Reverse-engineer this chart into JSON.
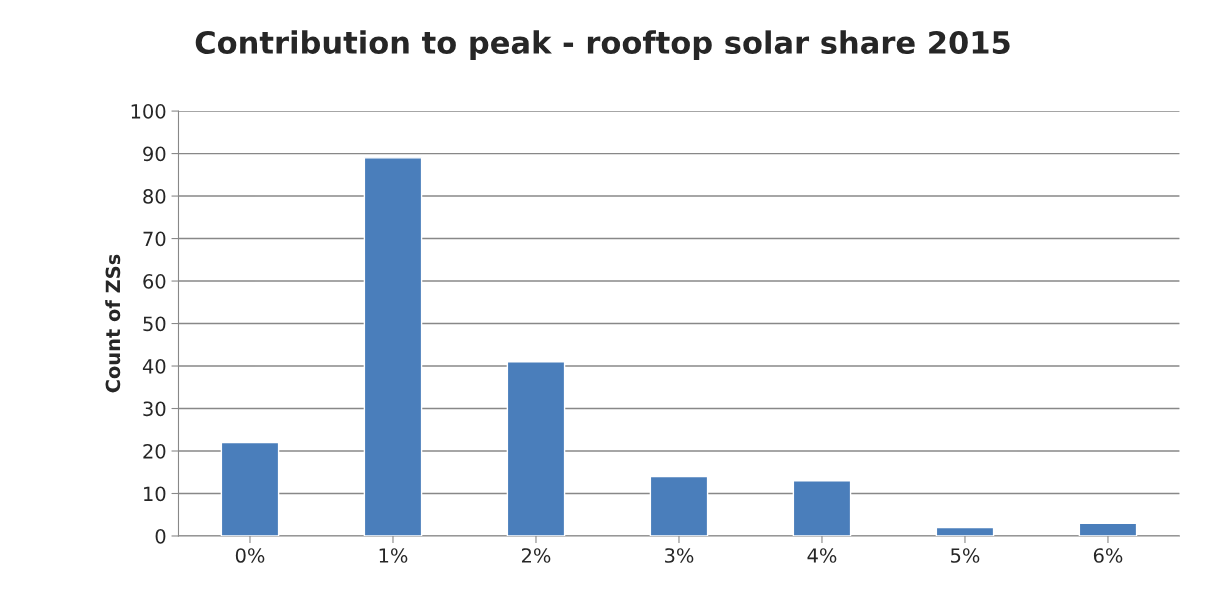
{
  "chart_data": {
    "type": "bar",
    "title": "Contribution to peak - rooftop solar share 2015",
    "ylabel": "Count of ZSs",
    "categories": [
      "0%",
      "1%",
      "2%",
      "3%",
      "4%",
      "5%",
      "6%"
    ],
    "values": [
      22,
      89,
      41,
      14,
      13,
      2,
      3
    ],
    "color": "#4a7ebb",
    "ylim": [
      0,
      100
    ],
    "yticks": [
      0,
      10,
      20,
      30,
      40,
      50,
      60,
      70,
      80,
      90,
      100
    ],
    "grid": "y",
    "legend": false
  }
}
